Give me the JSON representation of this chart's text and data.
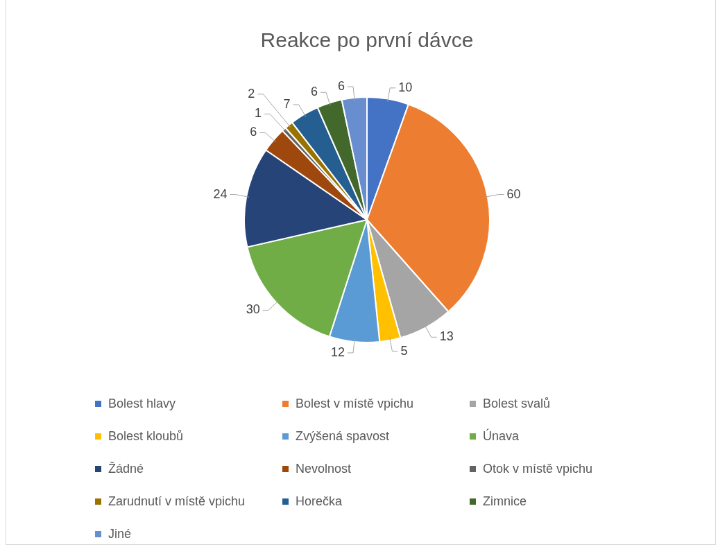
{
  "chart_data": {
    "type": "pie",
    "title": "Reakce po první dávce",
    "categories": [
      "Bolest hlavy",
      "Bolest v místě vpichu",
      "Bolest svalů",
      "Bolest kloubů",
      "Zvýšená spavost",
      "Únava",
      "Žádné",
      "Nevolnost",
      "Otok v místě vpichu",
      "Zarudnutí v místě vpichu",
      "Horečka",
      "Zimnice",
      "Jiné"
    ],
    "values": [
      10,
      60,
      13,
      5,
      12,
      30,
      24,
      6,
      1,
      2,
      7,
      6,
      6
    ],
    "colors": [
      "#4472c4",
      "#ed7d31",
      "#a5a5a5",
      "#ffc000",
      "#5b9bd5",
      "#70ad47",
      "#264478",
      "#9e480e",
      "#636363",
      "#997300",
      "#255e91",
      "#43682b",
      "#698ed0"
    ],
    "data_labels": true,
    "legend": "bottom"
  }
}
